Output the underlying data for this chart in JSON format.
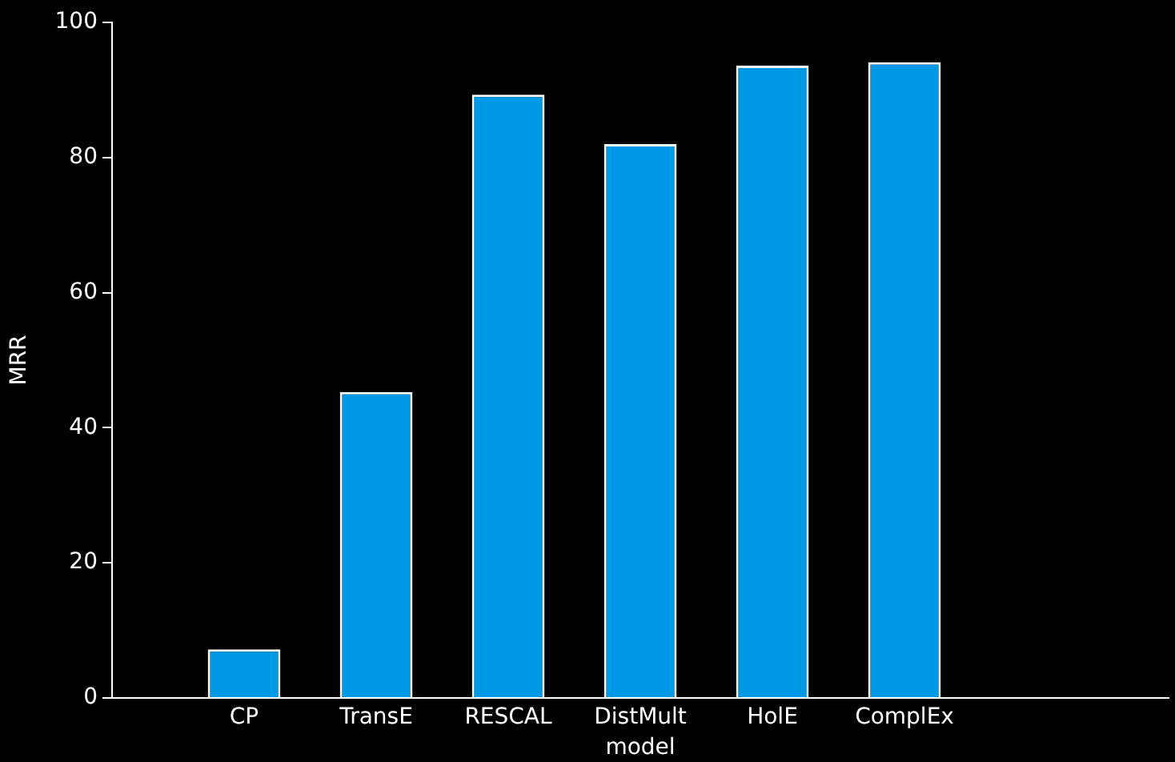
{
  "chart_data": {
    "type": "bar",
    "xlabel": "model",
    "ylabel": "MRR",
    "categories": [
      null,
      "CP",
      "TransE",
      "RESCAL",
      "DistMult",
      "HolE",
      "ComplEx",
      null,
      null
    ],
    "values": [
      null,
      7.2,
      45.3,
      89.3,
      82.0,
      93.6,
      94.1,
      null,
      null
    ],
    "color": "#0099e6",
    "ylim": [
      0,
      100
    ],
    "yticks": [
      0,
      20,
      40,
      60,
      80,
      100
    ],
    "grid": false,
    "legend": false
  }
}
